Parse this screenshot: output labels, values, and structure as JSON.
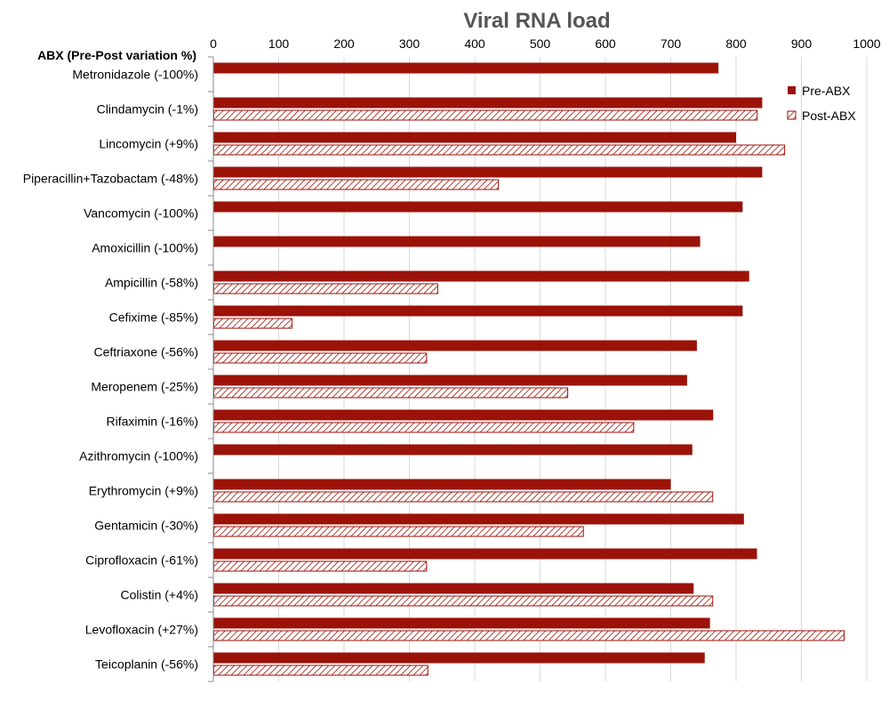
{
  "chart_data": {
    "type": "bar",
    "orientation": "horizontal",
    "title": "Viral RNA load",
    "category_header": "ABX (Pre-Post variation %)",
    "xlim": [
      0,
      1000
    ],
    "x_ticks": [
      0,
      100,
      200,
      300,
      400,
      500,
      600,
      700,
      800,
      900,
      1000
    ],
    "x_axis_position": "top",
    "grid": true,
    "legend": "top-right",
    "categories": [
      "Metronidazole (-100%)",
      "Clindamycin (-1%)",
      "Lincomycin (+9%)",
      "Piperacillin+Tazobactam (-48%)",
      "Vancomycin (-100%)",
      "Amoxicillin (-100%)",
      "Ampicillin (-58%)",
      "Cefixime (-85%)",
      "Ceftriaxone (-56%)",
      "Meropenem (-25%)",
      "Rifaximin (-16%)",
      "Azithromycin (-100%)",
      "Erythromycin (+9%)",
      "Gentamicin (-30%)",
      "Ciprofloxacin (-61%)",
      "Colistin (+4%)",
      "Levofloxacin (+27%)",
      "Teicoplanin (-56%)"
    ],
    "series": [
      {
        "name": "Pre-ABX",
        "color": "#9b1208",
        "pattern": "solid",
        "values": [
          773,
          840,
          800,
          840,
          810,
          745,
          820,
          810,
          740,
          725,
          765,
          733,
          700,
          812,
          832,
          735,
          760,
          752
        ]
      },
      {
        "name": "Post-ABX",
        "color": "#9b1208",
        "pattern": "hatched",
        "values": [
          0,
          833,
          875,
          437,
          0,
          0,
          344,
          121,
          327,
          543,
          644,
          0,
          765,
          567,
          327,
          765,
          966,
          329
        ]
      }
    ]
  }
}
